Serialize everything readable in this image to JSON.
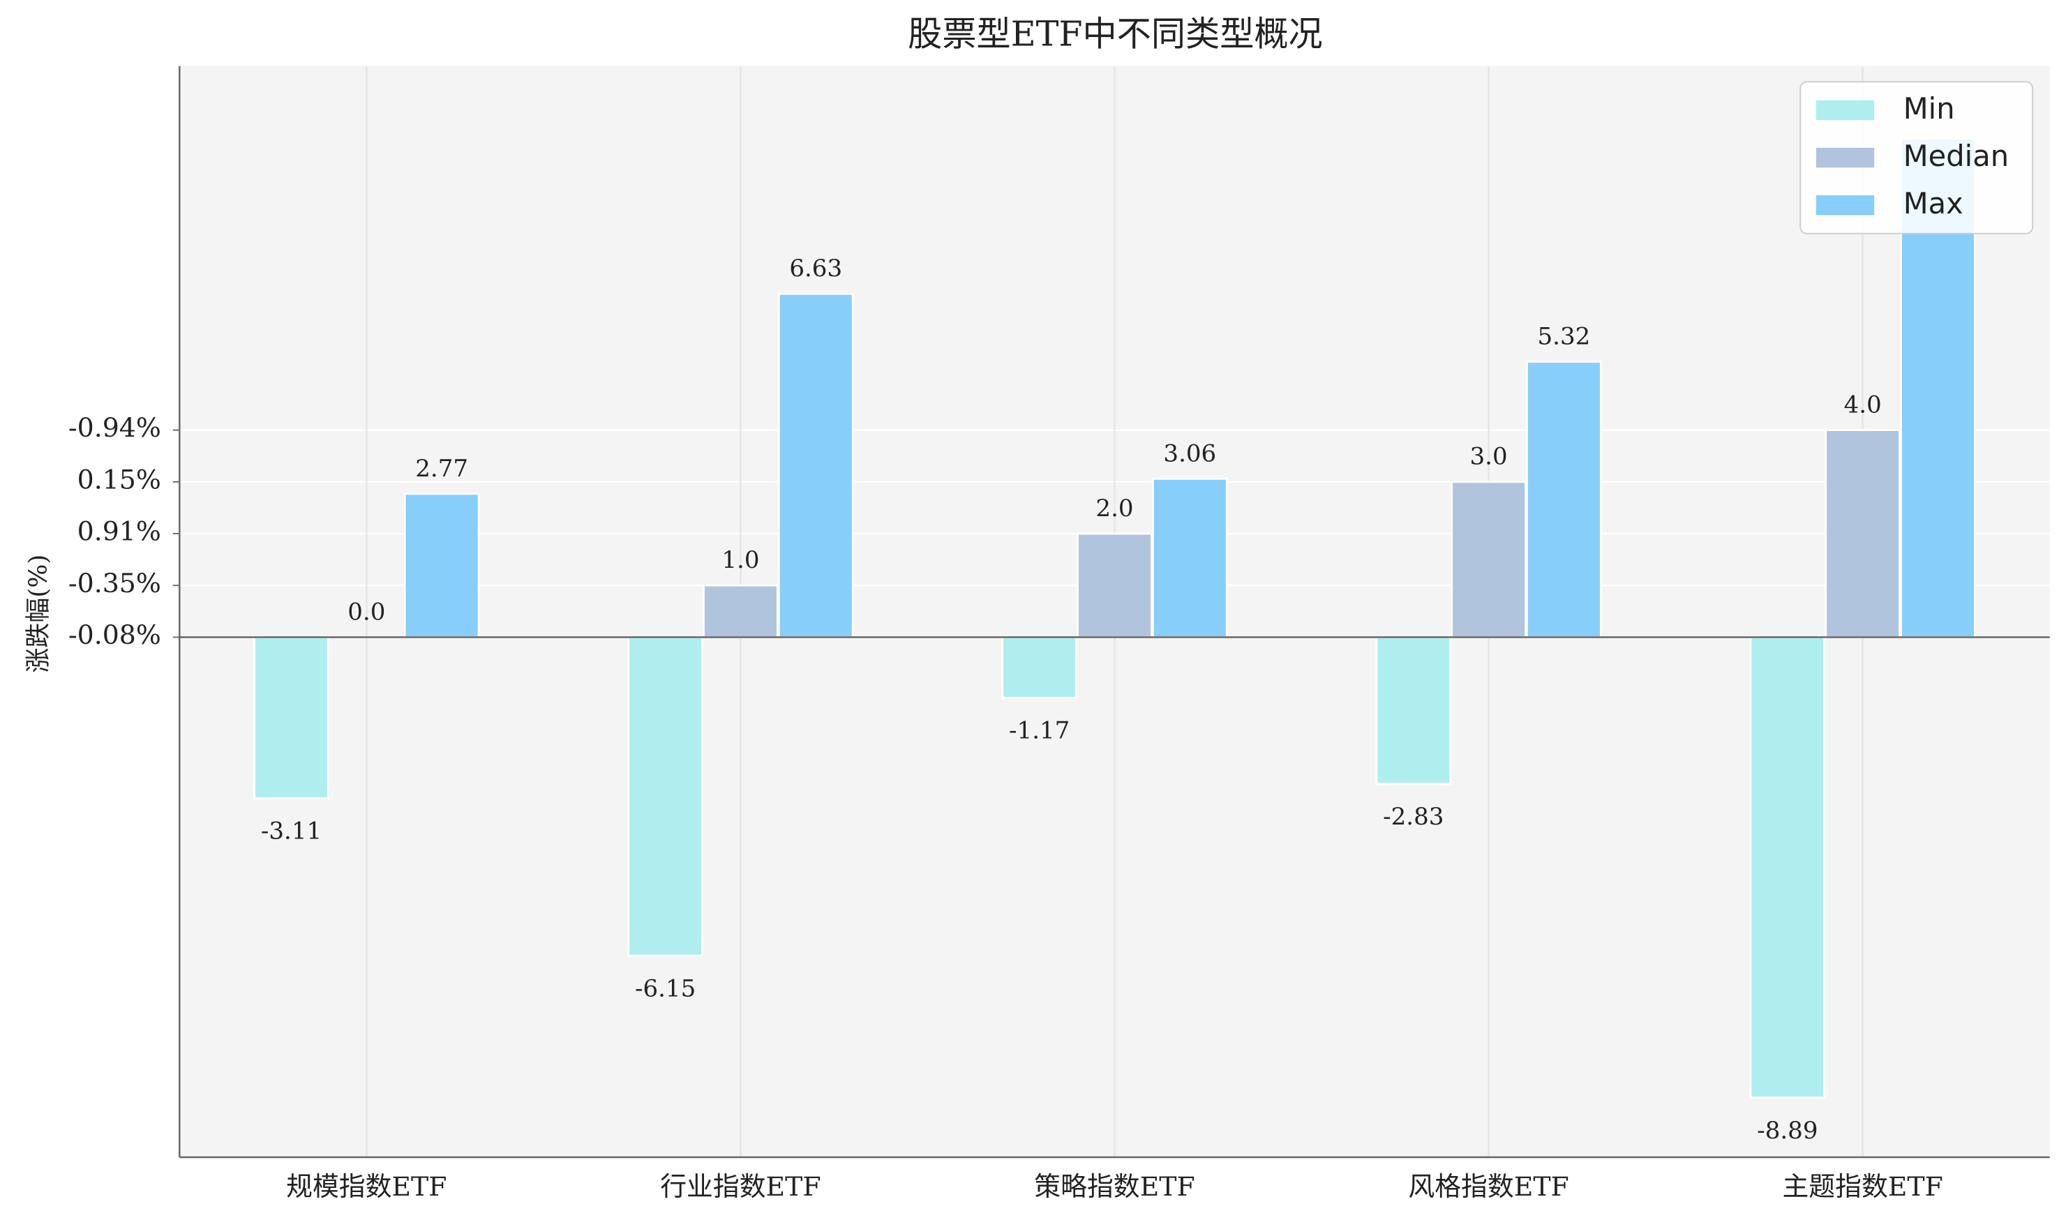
{
  "chart_data": {
    "type": "bar",
    "title": "股票型ETF中不同类型概况",
    "y_label": "涨跌幅(%)",
    "categories": [
      "规模指数ETF",
      "行业指数ETF",
      "策略指数ETF",
      "风格指数ETF",
      "主题指数ETF"
    ],
    "series": [
      {
        "name": "Min",
        "color": "#afeeee",
        "values": [
          -3.11,
          -6.15,
          -1.17,
          -2.83,
          -8.89
        ],
        "value_labels": [
          "-3.11",
          "-6.15",
          "-1.17",
          "-2.83",
          "-8.89"
        ]
      },
      {
        "name": "Median",
        "color": "#b0c4de",
        "values": [
          0,
          1,
          2,
          3,
          4
        ],
        "value_labels": [
          "0.0",
          "1.0",
          "2.0",
          "3.0",
          "4.0"
        ]
      },
      {
        "name": "Max",
        "color": "#87cefa",
        "values": [
          2.77,
          6.63,
          3.06,
          5.32,
          9.63
        ],
        "value_labels": [
          "2.77",
          "6.63",
          "3.06",
          "5.32",
          null
        ]
      }
    ],
    "ylim": [
      -10.04,
      11.03
    ],
    "yticks": [
      {
        "value": 0,
        "label": "-0.08%"
      },
      {
        "value": 1,
        "label": "-0.35%"
      },
      {
        "value": 2,
        "label": "0.91%"
      },
      {
        "value": 3,
        "label": "0.15%"
      },
      {
        "value": 4,
        "label": "-0.94%"
      }
    ],
    "grid": true,
    "legend": "upper right"
  }
}
